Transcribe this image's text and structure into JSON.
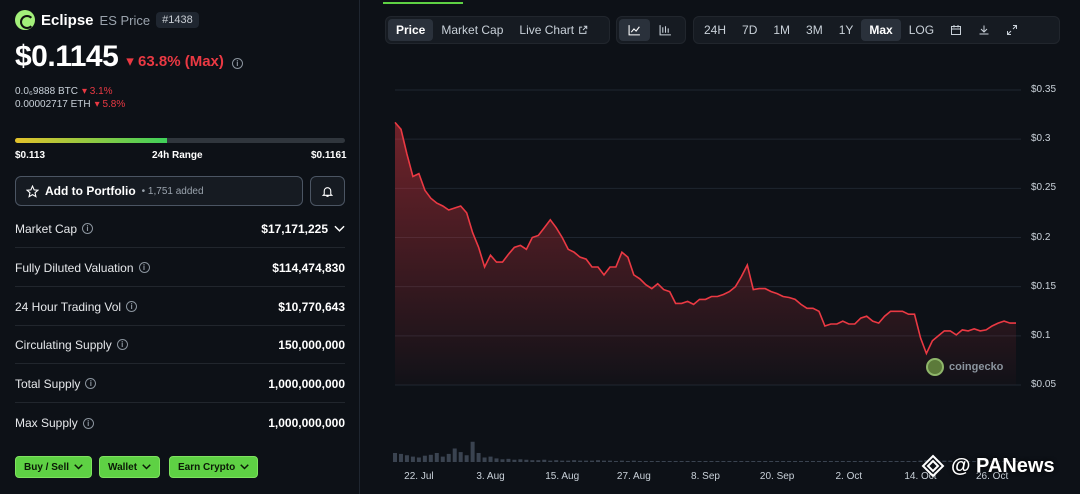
{
  "coin": {
    "name": "Eclipse",
    "symbol_label": "ES Price",
    "rank": "#1438"
  },
  "price": {
    "value": "$0.1145",
    "change": "63.8% (Max)"
  },
  "conversions": [
    {
      "value": "0.0₆9888 BTC",
      "change": "3.1%"
    },
    {
      "value": "0.00002717 ETH",
      "change": "5.8%"
    }
  ],
  "range": {
    "low": "$0.113",
    "label": "24h Range",
    "high": "$0.1161",
    "fill_fraction": 0.46
  },
  "portfolio": {
    "label": "Add to Portfolio",
    "count": "• 1,751 added"
  },
  "stats": [
    {
      "label": "Market Cap",
      "value": "$17,171,225"
    },
    {
      "label": "Fully Diluted Valuation",
      "value": "$114,474,830"
    },
    {
      "label": "24 Hour Trading Vol",
      "value": "$10,770,643"
    },
    {
      "label": "Circulating Supply",
      "value": "150,000,000"
    },
    {
      "label": "Total Supply",
      "value": "1,000,000,000"
    },
    {
      "label": "Max Supply",
      "value": "1,000,000,000"
    }
  ],
  "actions": [
    "Buy / Sell",
    "Wallet",
    "Earn Crypto"
  ],
  "chart_tabs": [
    "Price",
    "Market Cap",
    "Live Chart"
  ],
  "ranges": [
    "24H",
    "7D",
    "1M",
    "3M",
    "1Y",
    "Max",
    "LOG"
  ],
  "active_range": "Max",
  "watermark": "coingecko",
  "source_tag": "@ PANews",
  "colors": {
    "accent": "#5ed144",
    "down": "#ea3943",
    "bg": "#0d1117"
  },
  "chart_data": {
    "type": "line",
    "title": "",
    "xlabel": "",
    "ylabel": "",
    "ylim": [
      0.05,
      0.35
    ],
    "yticks": [
      "$0.35",
      "$0.3",
      "$0.25",
      "$0.2",
      "$0.15",
      "$0.1",
      "$0.05"
    ],
    "ytick_values": [
      0.35,
      0.3,
      0.25,
      0.2,
      0.15,
      0.1,
      0.05
    ],
    "xticks": [
      "22. Jul",
      "3. Aug",
      "15. Aug",
      "27. Aug",
      "8. Sep",
      "20. Sep",
      "2. Oct",
      "14. Oct",
      "26. Oct"
    ],
    "xtick_days": [
      4,
      16,
      28,
      40,
      52,
      64,
      76,
      88,
      100
    ],
    "series": [
      {
        "name": "Price",
        "day": [
          0,
          1,
          2,
          3,
          4,
          5,
          6,
          7,
          8,
          9,
          10,
          11,
          12,
          13,
          14,
          15,
          16,
          17,
          18,
          19,
          20,
          21,
          22,
          23,
          24,
          25,
          26,
          27,
          28,
          29,
          30,
          31,
          32,
          33,
          34,
          35,
          36,
          37,
          38,
          39,
          40,
          41,
          42,
          43,
          44,
          45,
          46,
          47,
          48,
          49,
          50,
          51,
          52,
          53,
          54,
          55,
          56,
          57,
          58,
          59,
          60,
          61,
          62,
          63,
          64,
          65,
          66,
          67,
          68,
          69,
          70,
          71,
          72,
          73,
          74,
          75,
          76,
          77,
          78,
          79,
          80,
          81,
          82,
          83,
          84,
          85,
          86,
          87,
          88,
          89,
          90,
          91,
          92,
          93,
          94,
          95,
          96,
          97,
          98,
          99,
          100,
          101,
          102,
          103,
          104
        ],
        "values": [
          0.317,
          0.31,
          0.285,
          0.262,
          0.265,
          0.248,
          0.24,
          0.235,
          0.232,
          0.228,
          0.23,
          0.232,
          0.225,
          0.205,
          0.19,
          0.17,
          0.182,
          0.175,
          0.175,
          0.183,
          0.19,
          0.192,
          0.188,
          0.2,
          0.202,
          0.21,
          0.218,
          0.21,
          0.2,
          0.188,
          0.185,
          0.18,
          0.178,
          0.17,
          0.17,
          0.162,
          0.17,
          0.17,
          0.185,
          0.18,
          0.162,
          0.158,
          0.152,
          0.148,
          0.153,
          0.147,
          0.145,
          0.133,
          0.133,
          0.135,
          0.132,
          0.137,
          0.137,
          0.14,
          0.14,
          0.142,
          0.145,
          0.15,
          0.16,
          0.172,
          0.147,
          0.148,
          0.148,
          0.145,
          0.143,
          0.14,
          0.139,
          0.137,
          0.132,
          0.128,
          0.128,
          0.125,
          0.11,
          0.112,
          0.112,
          0.115,
          0.112,
          0.112,
          0.118,
          0.12,
          0.115,
          0.113,
          0.12,
          0.125,
          0.125,
          0.125,
          0.122,
          0.122,
          0.098,
          0.082,
          0.095,
          0.1,
          0.105,
          0.105,
          0.101,
          0.106,
          0.105,
          0.107,
          0.105,
          0.106,
          0.11,
          0.113,
          0.115,
          0.113,
          0.113
        ]
      }
    ],
    "volume": [
      0.2,
      0.18,
      0.15,
      0.12,
      0.1,
      0.14,
      0.16,
      0.2,
      0.12,
      0.18,
      0.3,
      0.22,
      0.15,
      0.45,
      0.2,
      0.1,
      0.12,
      0.08,
      0.06,
      0.07,
      0.05,
      0.06,
      0.05,
      0.04,
      0.04,
      0.05,
      0.03,
      0.04,
      0.03,
      0.03,
      0.04,
      0.03,
      0.03,
      0.03,
      0.04,
      0.03,
      0.03,
      0.02,
      0.03,
      0.02,
      0.03,
      0.02,
      0.02,
      0.02,
      0.02,
      0.02,
      0.02,
      0.02,
      0.02,
      0.02,
      0.02,
      0.02,
      0.02,
      0.02,
      0.02,
      0.02,
      0.02,
      0.02,
      0.02,
      0.02,
      0.02,
      0.02,
      0.02,
      0.02,
      0.02,
      0.02,
      0.02,
      0.02,
      0.02,
      0.02,
      0.02,
      0.02,
      0.02,
      0.02,
      0.02,
      0.02,
      0.02,
      0.02,
      0.02,
      0.02,
      0.02,
      0.02,
      0.02,
      0.02,
      0.02,
      0.02,
      0.02,
      0.02,
      0.03,
      0.04,
      0.03,
      0.03,
      0.03,
      0.03,
      0.02,
      0.03,
      0.02,
      0.02,
      0.02,
      0.02,
      0.02,
      0.02,
      0.02,
      0.02,
      0.02
    ]
  }
}
